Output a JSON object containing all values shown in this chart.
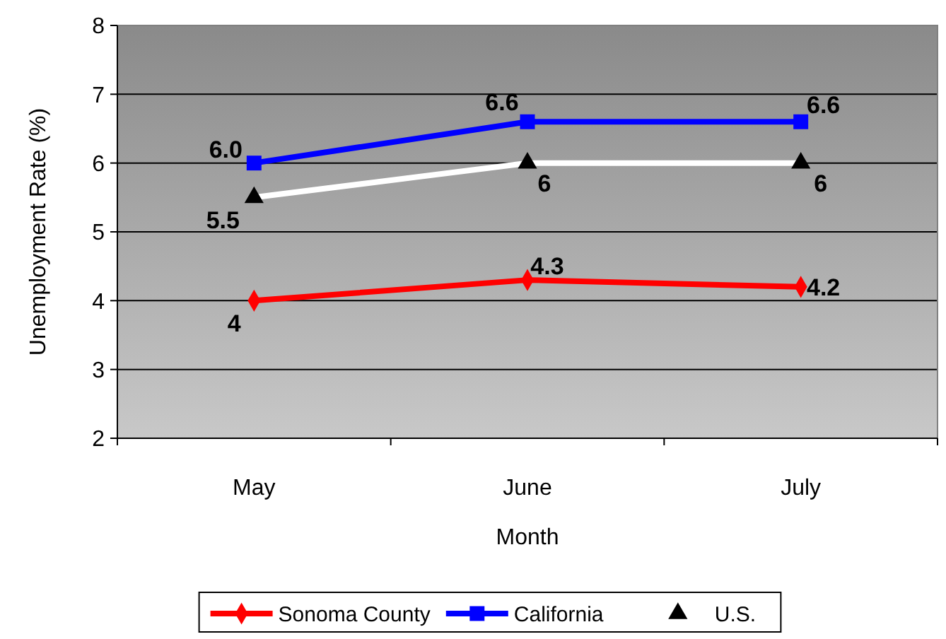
{
  "chart_data": {
    "type": "line",
    "xlabel": "Month",
    "ylabel": "Unemployment Rate (%)",
    "categories": [
      "May",
      "June",
      "July"
    ],
    "ylim": [
      2,
      8
    ],
    "yticks": [
      2,
      3,
      4,
      5,
      6,
      7,
      8
    ],
    "grid": "y",
    "legend": "bottom",
    "series": [
      {
        "name": "Sonoma County",
        "color": "#ff0000",
        "marker": "diamond",
        "values": [
          4,
          4.3,
          4.2
        ],
        "value_labels": [
          "4",
          "4.3",
          "4.2"
        ]
      },
      {
        "name": "California",
        "color": "#0000ff",
        "marker": "square",
        "values": [
          6.0,
          6.6,
          6.6
        ],
        "value_labels": [
          "6.0",
          "6.6",
          "6.6"
        ]
      },
      {
        "name": "U.S.",
        "color": "#ffffff",
        "marker": "triangle",
        "values": [
          5.5,
          6,
          6
        ],
        "value_labels": [
          "5.5",
          "6",
          "6"
        ]
      }
    ]
  }
}
